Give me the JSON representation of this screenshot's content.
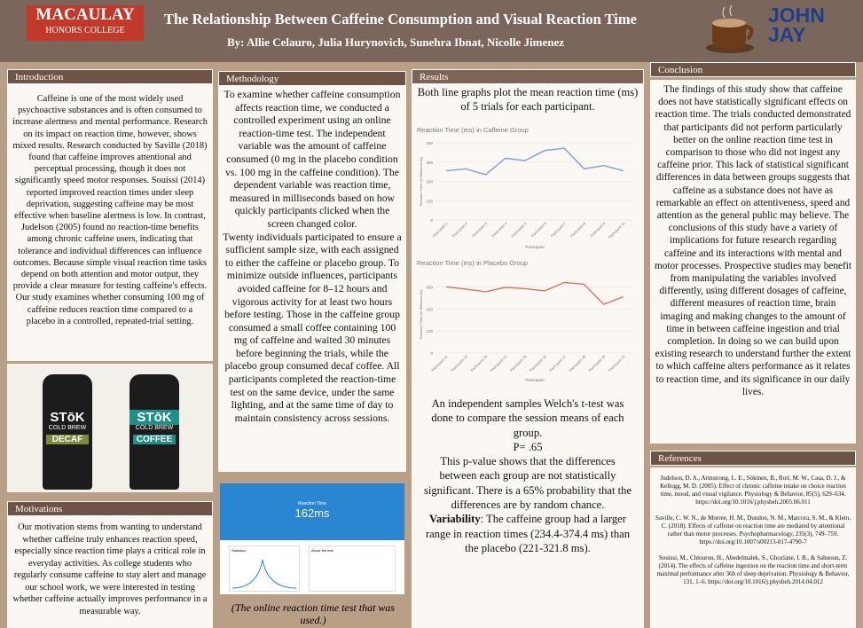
{
  "header": {
    "logo_line1": "MACAULAY",
    "logo_line2": "HONORS COLLEGE",
    "title": "The Relationship Between Caffeine Consumption and Visual Reaction Time",
    "authors": "By: Allie Celauro, Julia Hurynovich, Sunehra Ibnat, Nicolle Jimenez",
    "logo_right": "JOHN JAY"
  },
  "introduction": {
    "heading": "Introduction",
    "text": "Caffeine is one of the most widely used psychoactive substances and is often consumed to increase alertness and mental performance. Research on its impact on reaction time, however, shows mixed results. Research conducted by Saville (2018) found that caffeine improves attentional and perceptual processing, though it does not significantly speed motor responses. Souissi (2014) reported improved reaction times under sleep deprivation, suggesting caffeine may be most effective when baseline alertness is low. In contrast, Judelson (2005) found no reaction-time benefits among chronic caffeine users, indicating that tolerance and individual differences can influence outcomes. Because simple visual reaction time tasks depend on both attention and motor output, they provide a clear measure for testing caffeine's effects. Our study examines whether consuming 100 mg of caffeine reduces reaction time compared to a placebo in a controlled, repeated-trial setting.",
    "bottles": [
      {
        "brand": "STōK",
        "line": "COLD BREW",
        "kind": "DECAF"
      },
      {
        "brand": "STōK",
        "line": "COLD BREW",
        "kind": "COFFEE"
      }
    ]
  },
  "motivations": {
    "heading": "Motivations",
    "text": "Our motivation stems from wanting to understand whether caffeine truly enhances reaction speed, especially since reaction time plays a critical role in everyday activities. As college students who regularly consume caffeine to stay alert and manage our school work, we were interested in testing whether caffeine actually improves performance in a measurable way."
  },
  "methodology": {
    "heading": "Methodology",
    "paragraphs": [
      "To examine whether caffeine consumption affects reaction time, we conducted a controlled experiment using an online reaction-time test. The independent variable was the amount of caffeine consumed (0 mg in the placebo condition vs. 100 mg in the caffeine condition). The dependent variable was reaction time, measured in milliseconds based on how quickly participants clicked when the screen changed color.",
      "Twenty individuals participated to ensure a sufficient sample size, with each assigned to either the caffeine or placebo group. To minimize outside influences, participants avoided caffeine for 8–12 hours and vigorous activity for at least two hours before testing. Those in the caffeine group consumed a small coffee containing 100 mg of caffeine and waited 30 minutes before beginning the trials, while the placebo group consumed decaf coffee. All participants completed the reaction-time test on the same device, under the same lighting, and at the same time of day to maintain consistency across sessions."
    ],
    "screenshot_label": "Reaction Time",
    "screenshot_value": "162ms",
    "screenshot_panel1": "Statistics",
    "screenshot_panel2": "About the test",
    "caption": "(The online reaction time test that was used.)"
  },
  "results": {
    "heading": "Results",
    "intro": "Both line graphs plot the mean reaction time (ms) of 5 trials for each participant.",
    "charts": [
      {
        "type": "line",
        "title": "Reaction Time (ms) in Caffeine Group",
        "y_label": "Reaction Time (in Milliseconds)",
        "x_label": "Participant",
        "categories": [
          "Participant 1",
          "Participant 2",
          "Participant 3",
          "Participant 4",
          "Participant 5",
          "Participant 6",
          "Participant 7",
          "Participant 8",
          "Participant 9",
          "Participant 10"
        ],
        "values": [
          255,
          265,
          235,
          320,
          308,
          360,
          372,
          265,
          282,
          255
        ],
        "color": "#7d9fd8",
        "ylim": [
          0,
          400
        ],
        "yticks": [
          0,
          100,
          200,
          300,
          400
        ],
        "grid": true
      },
      {
        "type": "line",
        "title": "Reaction Time (ms) in Placebo Group",
        "y_label": "Reaction Time (in Milliseconds)",
        "x_label": "Participant",
        "categories": [
          "Participant 11",
          "Participant 12",
          "Participant 13",
          "Participant 14",
          "Participant 15",
          "Participant 16",
          "Participant 17",
          "Participant 18",
          "Participant 19",
          "Participant 20"
        ],
        "values": [
          300,
          290,
          278,
          298,
          292,
          282,
          320,
          312,
          221,
          255
        ],
        "color": "#d9735f",
        "ylim": [
          0,
          350
        ],
        "yticks": [
          0,
          100,
          200,
          300
        ],
        "grid": true
      }
    ],
    "test_text": "An independent samples Welch's t-test was done to compare the session means of each group.",
    "p_value": "P= .65",
    "interpretation": "This p-value shows that the differences between each group are not statistically significant. There is a 65% probability that the differences are by random chance.",
    "variability_label": "Variability",
    "variability_text": ": The caffeine group had a larger range in reaction times (234.4-374.4 ms) than the placebo (221-321.8 ms)."
  },
  "conclusion": {
    "heading": "Conclusion",
    "text": "The findings of this study show that caffeine does not have statistically significant effects on reaction time. The trials conducted demonstrated that participants did not perform particularly better on the online reaction time test in comparison to those who did not ingest any caffeine prior. This lack of statistical significant differences in data between groups suggests that caffeine as a substance does not have as remarkable an effect on attentiveness, speed and attention as the general public may believe. The conclusions of this study have a variety of implications for future research regarding caffeine and its interactions with mental and motor processes. Prospective studies may benefit from manipulating the variables involved differently, using different dosages of caffeine, different measures of reaction time, brain imaging and making changes to the amount of time in between caffeine ingestion and trial completion. In doing so we can build upon existing research to understand further the extent to which caffeine alters performance as it relates to reaction time, and its significance in our daily lives."
  },
  "references": {
    "heading": "References",
    "items": [
      "Judelson, D. A., Armstrong, L. E., Sökmen, B., Roti, M. W., Casa, D. J., & Kellogg, M. D. (2005). Effect of chronic caffeine intake on choice reaction time, mood, and visual vigilance. Physiology & Behavior, 85(5), 629–634. https://doi.org/10.1016/j.physbeh.2005.06.011",
      "Saville, C. W. N., de Morree, H. M., Dundon, N. M., Marcora, S. M., & Klein, C. (2018). Effects of caffeine on reaction time are mediated by attentional rather than motor processes. Psychopharmacology, 235(3), 749–759. https://doi.org/10.1007/s00213-017-4790-7",
      "Souissi, M., Chtourou, H., Abedelmalek, S., Ghozlane, I. B., & Sahnoun, Z. (2014). The effects of caffeine ingestion on the reaction time and short-term maximal performance after 36h of sleep deprivation. Physiology & Behavior, 131, 1–6. https://doi.org/10.1016/j.physbeh.2014.04.012"
    ]
  }
}
